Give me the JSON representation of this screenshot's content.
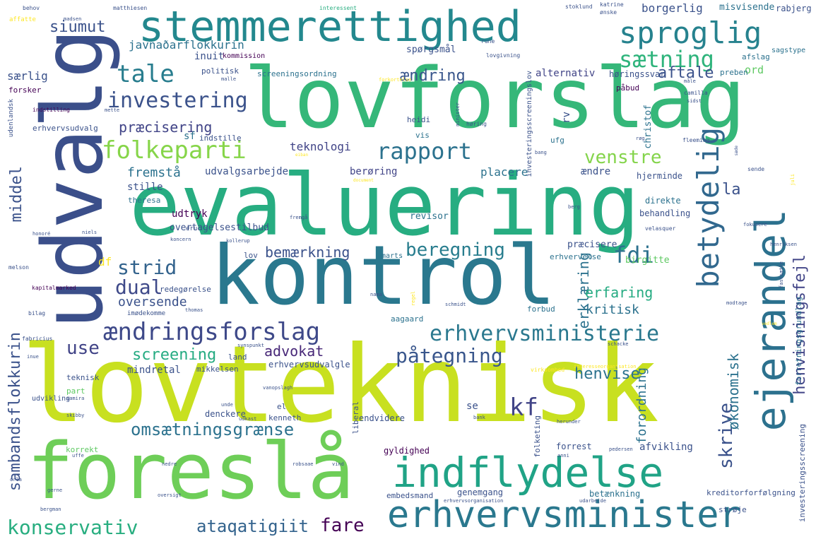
{
  "palette": {
    "purple": "#440154",
    "indigo": "#3b528b",
    "blue": "#2c728e",
    "teal": "#21918c",
    "green": "#28ae80",
    "lime": "#5ec962",
    "yellowgreen": "#addc30",
    "yellow": "#fde725"
  },
  "words": {
    "lovteknisk": "lovteknisk",
    "evaluering": "evaluering",
    "kontrol": "kontrol",
    "lovforslag": "lovforslag",
    "udvalg": "udvalg",
    "foreslaa": "foreslå",
    "stemmerettighed": "stemmerettighed",
    "indflydelse": "indflydelse",
    "erhvervsminister": "erhvervsminister",
    "ejerandel": "ejerandel",
    "betydelig": "betydelig",
    "sproglig": "sproglig",
    "aendringsforslag": "ændringsforslag",
    "erhvervsministerie": "erhvervsministerie",
    "folkeparti": "folkeparti",
    "rapport": "rapport",
    "tale": "tale",
    "investering": "investering",
    "saetning": "sætning",
    "venstre": "venstre",
    "henvisningsfejl": "henvisningsfejl",
    "konservativ": "konservativ",
    "paategning": "påtegning",
    "beregning": "beregning",
    "strid": "strid",
    "dual": "dual",
    "fdi": "fdi",
    "kf": "kf",
    "fare": "fare",
    "ataqatigiit": "ataqatigiit",
    "omsaetningsgraense": "omsætningsgrænse",
    "screening": "screening",
    "advokat": "advokat",
    "henvise": "henvise",
    "use": "use",
    "skrive": "skrive",
    "oekonomisk": "økonomisk",
    "siumut": "siumut",
    "aendring": "ændring",
    "aftale": "aftale",
    "sambandsflokkurin": "sambandsflokkurin",
    "middel": "middel",
    "laerklaering": "erklæring",
    "la": "la",
    "praecisering": "præcisering",
    "teknologi": "teknologi",
    "fremstaa": "fremstå",
    "bemaerkning": "bemærkning",
    "erfaring": "erfaring",
    "kritisk": "kritisk",
    "oversende": "oversende",
    "forordning": "forordning",
    "erhvervsministeriet_small": "erhvervsudvalg",
    "javnadarflokkurin": "javnaðarflokkurin",
    "borgerlig": "borgerlig",
    "misvisende": "misvisende",
    "rabjerg": "rabjerg",
    "inuit": "inuit",
    "kommission": "kommission",
    "spoergsmaal": "spørgsmål",
    "ord": "ord",
    "saerlig": "særlig",
    "forsker": "forsker",
    "politisk": "politisk",
    "screeningsordning": "screeningsordning",
    "hoeringssvar": "høringssvar",
    "alternativ": "alternativ",
    "paabud": "påbud",
    "preben": "preben",
    "afslag": "afslag",
    "sagstype": "sagstype",
    "christof": "christof",
    "udvalgsarbejde": "udvalgsarbejde",
    "beroering": "berøring",
    "placere": "placere",
    "aendre": "ændre",
    "hjerminde": "hjerminde",
    "direkte": "direkte",
    "behandling": "behandling",
    "stille": "stille",
    "theresa": "theresa",
    "udtryk": "udtryk",
    "revisor": "revisor",
    "overtagelsestilbud": "overtagelsestilbud",
    "praecisere": "præcisere",
    "lov": "lov",
    "marts": "marts",
    "birgitte": "birgitte",
    "erhvervelse": "erhvervelse",
    "df": "df",
    "redegoerelse": "redegørelse",
    "forbud": "forbud",
    "aagaard": "aagaard",
    "mindretal": "mindretal",
    "mikkelsen": "mikkelsen",
    "erhvervsudvalgle": "erhvervsudvalgle",
    "land": "land",
    "se": "se",
    "denckere": "denckere",
    "kenneth": "kenneth",
    "endvidere": "endvidere",
    "afvikling": "afvikling",
    "korrekt": "korrekt",
    "gyldighed": "gyldighed",
    "forrest": "forrest",
    "genemgang": "genemgang",
    "embedsmand": "embedsmand",
    "betaenkning": "betænkning",
    "kreditorforfoelgning": "kreditorforfølgning",
    "stroeje": "strøje",
    "forretningsgrundlag": "forretningsgrundlag",
    "investeringsscreening": "investeringsscreening",
    "investeringsscreeningslov": "investeringsscreeningslov",
    "rv": "rv",
    "sf": "sf",
    "indstille": "indstille",
    "vis": "vis",
    "heidi": "heidi",
    "ufg": "ufg",
    "teknisk": "teknisk",
    "part": "part",
    "udvikling": "udvikling",
    "liberal": "liberal",
    "folketing": "folketing",
    "el": "el",
    "behov": "behov",
    "matthiesen": "matthiesen",
    "interessent": "interessent",
    "stoklund": "stoklund",
    "katrine": "katrine",
    "oenske": "ønske",
    "affatte": "affatte",
    "madsen": "madsen",
    "rune": "rune",
    "lovgivning": "lovgivning",
    "malle": "malle",
    "forkortelse": "forkortelse",
    "indstilling": "indstilling",
    "mette": "mette",
    "minister": "minister",
    "camilla": "camilla",
    "sidst": "sidst",
    "maale": "måle",
    "udenlandsk": "udenlandsk",
    "hoering": "høring",
    "fleeming": "fleeming",
    "roeg": "røg",
    "bang": "bang",
    "saede": "sæde",
    "sende": "sende",
    "juli": "juli",
    "berg": "berg",
    "fokusere": "fokusere",
    "henriksen": "henriksen",
    "fastsaette": "fastsætte",
    "honore": "honoré",
    "niels": "niels",
    "koncern": "koncern",
    "eru": "eru",
    "fremgaa": "fremgå",
    "velasquer": "velasquer",
    "kollerup": "kollerup",
    "melson": "melson",
    "kapitalmarked": "kapitalmarked",
    "imoedekomme": "imødekomme",
    "bilag": "bilag",
    "thomas": "thomas",
    "nama": "nama",
    "regel": "regel",
    "schmidt": "schmidt",
    "modtage": "modtage",
    "fabricius": "fabricius",
    "inue": "inue",
    "synspunkt": "synspunkt",
    "schacke": "schacke",
    "virksomhed": "virksomhed",
    "interesseorganisation": "interesseorganisation",
    "samira": "samira",
    "vanopslagh": "vanopslagh",
    "unde": "unde",
    "udkast": "udkast",
    "bank": "bank",
    "herunder": "herunder",
    "skibby": "skibby",
    "uffe": "uffe",
    "nedre": "nedre",
    "robsaae": "robsaae",
    "vind": "vind",
    "pedersen": "pedersen",
    "anni": "anni",
    "orla": "orla",
    "gerne": "gerne",
    "bergman": "bergman",
    "oversigt": "oversigt",
    "erhvervsorganisation": "erhvervsorganisation",
    "udarbejde": "udarbejde",
    "vedlem": "vedlem",
    "document": "document",
    "eiban": "eiban"
  }
}
